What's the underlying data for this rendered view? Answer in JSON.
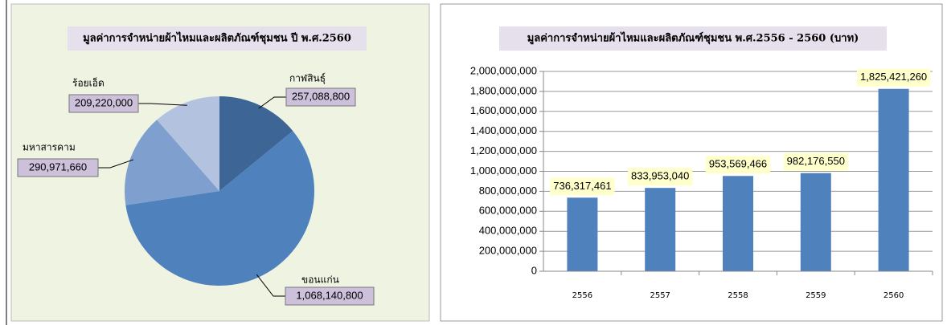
{
  "chart_data": [
    {
      "type": "pie",
      "title": "มูลค่าการจำหน่ายผ้าไหมและผลิตภัณฑ์ชุมชน ปี พ.ศ.2560",
      "categories": [
        "กาฬสินธุ์",
        "ขอนแก่น",
        "มหาสารคาม",
        "ร้อยเอ็ด"
      ],
      "values": [
        257088800,
        1068140800,
        290971660,
        209220000
      ],
      "value_labels": [
        "257,088,800",
        "1,068,140,800",
        "290,971,660",
        "209,220,000"
      ],
      "colors": [
        "#3d6596",
        "#4f81bd",
        "#7f9fcf",
        "#b3c3df"
      ]
    },
    {
      "type": "bar",
      "title": "มูลค่าการจำหน่ายผ้าไหมและผลิตภัณฑ์ชุมชน พ.ศ.2556 - 2560 (บาท)",
      "categories": [
        "2556",
        "2557",
        "2558",
        "2559",
        "2560"
      ],
      "values": [
        736317461,
        833953040,
        953569466,
        982176550,
        1825421260
      ],
      "value_labels": [
        "736,317,461",
        "833,953,040",
        "953,569,466",
        "982,176,550",
        "1,825,421,260"
      ],
      "color": "#4f81bd",
      "ylim": [
        0,
        2000000000
      ],
      "yticks": [
        0,
        {
          "value": 200000000,
          "label": "200,000,000"
        },
        {
          "value": 400000000,
          "label": "400,000,000"
        },
        {
          "value": 600000000,
          "label": "600,000,000"
        },
        {
          "value": 800000000,
          "label": "800,000,000"
        },
        {
          "value": 1000000000,
          "label": "1,000,000,000"
        },
        {
          "value": 1200000000,
          "label": "1,200,000,000"
        },
        {
          "value": 1400000000,
          "label": "1,400,000,000"
        },
        {
          "value": 1600000000,
          "label": "1,600,000,000"
        },
        {
          "value": 1800000000,
          "label": "1,800,000,000"
        },
        {
          "value": 2000000000,
          "label": "2,000,000,000"
        }
      ],
      "grid": true
    }
  ]
}
